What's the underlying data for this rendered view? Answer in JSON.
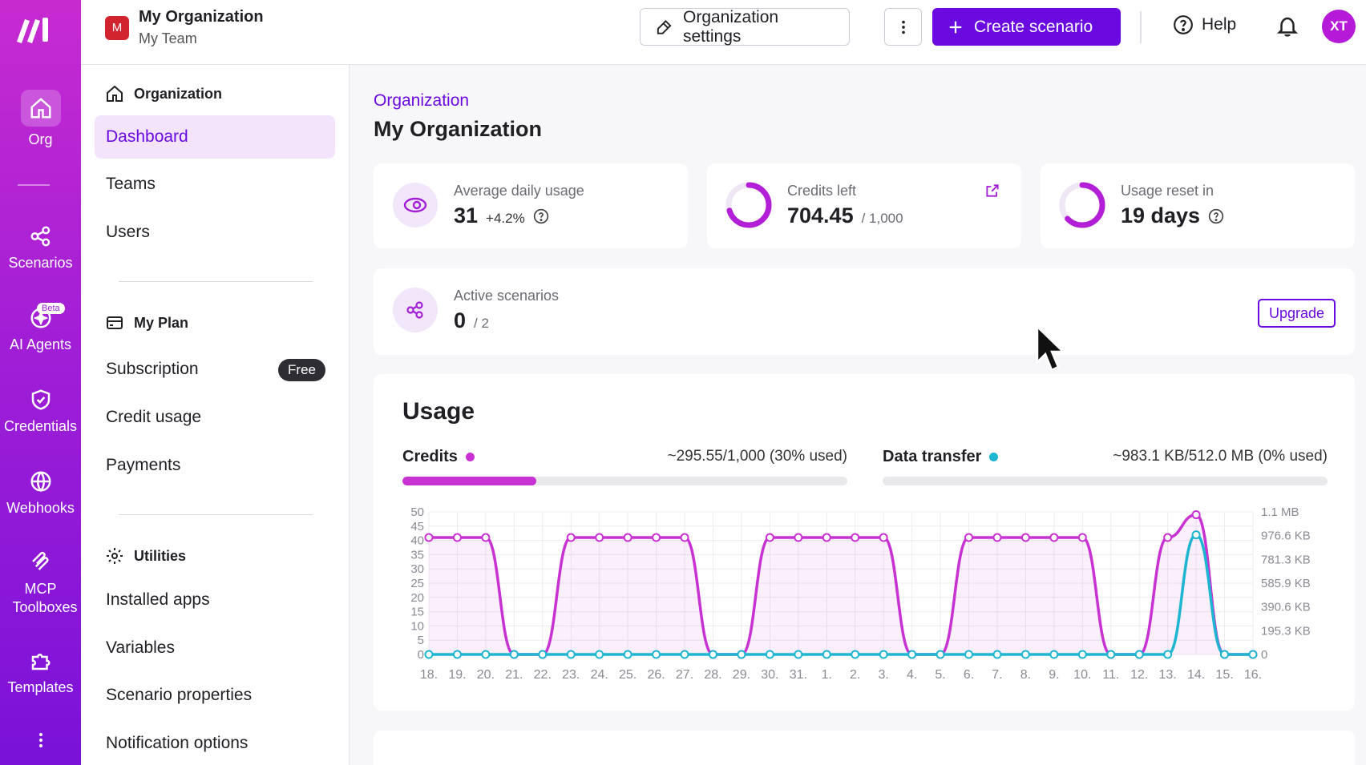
{
  "rail": {
    "items": [
      {
        "label": "Org",
        "icon": "home-icon"
      },
      {
        "label": "Scenarios",
        "icon": "share-nodes-icon"
      },
      {
        "label": "AI Agents",
        "icon": "sparkle-icon",
        "badge": "Beta"
      },
      {
        "label": "Credentials",
        "icon": "shield-icon"
      },
      {
        "label": "Webhooks",
        "icon": "globe-icon"
      },
      {
        "label": "MCP Toolboxes",
        "icon": "mcp-icon"
      },
      {
        "label": "Templates",
        "icon": "puzzle-icon"
      }
    ]
  },
  "header": {
    "org_initial": "M",
    "org_name": "My Organization",
    "team_name": "My Team",
    "settings_label": "Organization settings",
    "create_label": "Create scenario",
    "help_label": "Help",
    "avatar_initials": "XT"
  },
  "sidebar": {
    "sections": [
      {
        "title": "Organization",
        "icon": "home-icon",
        "items": [
          "Dashboard",
          "Teams",
          "Users"
        ]
      },
      {
        "title": "My Plan",
        "icon": "card-icon",
        "items": [
          "Subscription",
          "Credit usage",
          "Payments"
        ]
      },
      {
        "title": "Utilities",
        "icon": "gear-icon",
        "items": [
          "Installed apps",
          "Variables",
          "Scenario properties",
          "Notification options"
        ]
      }
    ],
    "active_item": "Dashboard",
    "subscription_badge": "Free"
  },
  "main": {
    "breadcrumb": "Organization",
    "title": "My Organization",
    "stats": {
      "avg_daily": {
        "label": "Average daily usage",
        "value": "31",
        "delta": "+4.2%"
      },
      "credits_left": {
        "label": "Credits left",
        "value": "704.45",
        "total": "/ 1,000",
        "fraction": 0.70445
      },
      "usage_reset": {
        "label": "Usage reset in",
        "value": "19 days",
        "fraction": 0.63
      }
    },
    "active_scenarios": {
      "label": "Active scenarios",
      "value": "0",
      "total": "/ 2",
      "upgrade_label": "Upgrade"
    },
    "usage": {
      "title": "Usage",
      "credits": {
        "label": "Credits",
        "summary": "~295.55/1,000 (30% used)",
        "fraction": 0.3
      },
      "transfer": {
        "label": "Data transfer",
        "summary": "~983.1 KB/512.0 MB (0% used)",
        "fraction": 0.0
      }
    }
  },
  "colors": {
    "accent": "#6b0ae0",
    "credits": "#c832d2",
    "transfer": "#1db5d1"
  },
  "chart_data": {
    "type": "line",
    "x": [
      "18.",
      "19.",
      "20.",
      "21.",
      "22.",
      "23.",
      "24.",
      "25.",
      "26.",
      "27.",
      "28.",
      "29.",
      "30.",
      "31.",
      "1.",
      "2.",
      "3.",
      "4.",
      "5.",
      "6.",
      "7.",
      "8.",
      "9.",
      "10.",
      "11.",
      "12.",
      "13.",
      "14.",
      "15.",
      "16."
    ],
    "y_left_ticks": [
      "0",
      "5",
      "10",
      "15",
      "20",
      "25",
      "30",
      "35",
      "40",
      "45",
      "50"
    ],
    "y_right_ticks": [
      "0",
      "195.3 KB",
      "390.6 KB",
      "585.9 KB",
      "781.3 KB",
      "976.6 KB",
      "1.1 MB"
    ],
    "ylim_left": [
      0,
      50
    ],
    "ylim_right_kb": [
      0,
      1171.9
    ],
    "series": [
      {
        "name": "Credits",
        "axis": "left",
        "values": [
          41,
          41,
          41,
          0,
          0,
          41,
          41,
          41,
          41,
          41,
          0,
          0,
          41,
          41,
          41,
          41,
          41,
          0,
          0,
          41,
          41,
          41,
          41,
          41,
          0,
          0,
          41,
          49,
          0,
          0
        ]
      },
      {
        "name": "Data transfer",
        "axis": "right",
        "values": [
          0,
          0,
          0,
          0,
          0,
          0,
          0,
          0,
          0,
          0,
          0,
          0,
          0,
          0,
          0,
          0,
          0,
          0,
          0,
          0,
          0,
          0,
          0,
          0,
          0,
          0,
          0,
          983.1,
          0,
          0
        ]
      }
    ],
    "grid": true
  }
}
